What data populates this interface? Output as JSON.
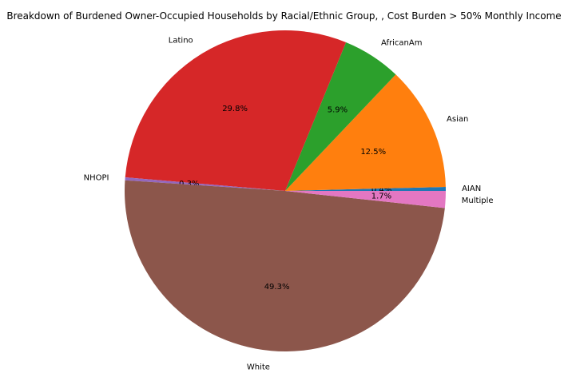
{
  "chart_data": {
    "type": "pie",
    "title": "Breakdown of Burdened Owner-Occupied Households by Racial/Ethnic Group, , Cost Burden > 50% Monthly Income",
    "slices": [
      {
        "label": "AIAN",
        "value": 0.4,
        "pct_label": "0.4%",
        "color": "#1f77b4"
      },
      {
        "label": "Asian",
        "value": 12.5,
        "pct_label": "12.5%",
        "color": "#ff7f0e"
      },
      {
        "label": "AfricanAm",
        "value": 5.9,
        "pct_label": "5.9%",
        "color": "#2ca02c"
      },
      {
        "label": "Latino",
        "value": 29.8,
        "pct_label": "29.8%",
        "color": "#d62728"
      },
      {
        "label": "NHOPI",
        "value": 0.3,
        "pct_label": "0.3%",
        "color": "#9467bd"
      },
      {
        "label": "White",
        "value": 49.3,
        "pct_label": "49.3%",
        "color": "#8c564b"
      },
      {
        "label": "Multiple",
        "value": 1.7,
        "pct_label": "1.7%",
        "color": "#e377c2"
      }
    ],
    "start_angle_deg": 0,
    "direction": "counterclockwise"
  }
}
